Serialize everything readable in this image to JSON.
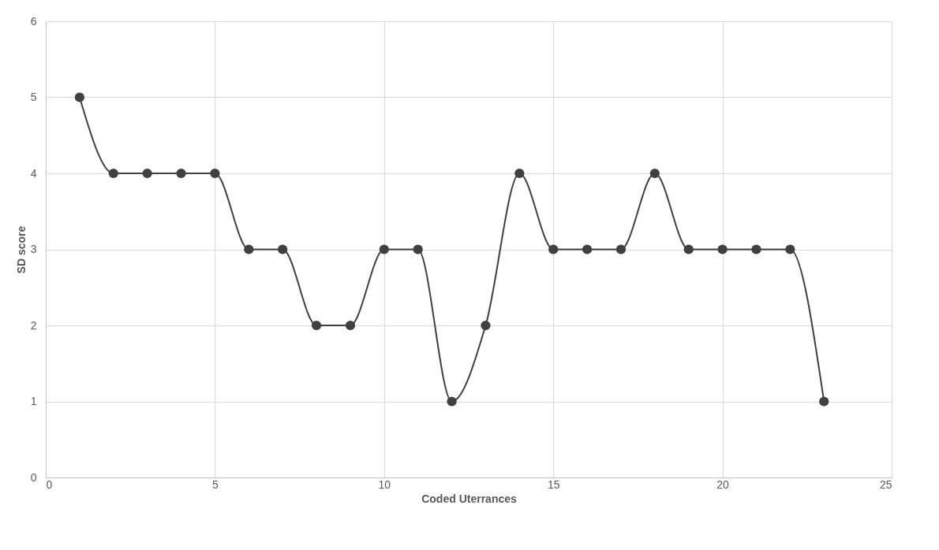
{
  "chart_data": {
    "type": "line",
    "xlabel": "Coded Uterrances",
    "ylabel": "SD score",
    "x": [
      1,
      2,
      3,
      4,
      5,
      6,
      7,
      8,
      9,
      10,
      11,
      12,
      13,
      14,
      15,
      16,
      17,
      18,
      19,
      20,
      21,
      22,
      23
    ],
    "series": [
      {
        "color": "#404040",
        "values": [
          5,
          4,
          4,
          4,
          4,
          3,
          3,
          2,
          2,
          3,
          3,
          1,
          2,
          4,
          3,
          3,
          3,
          4,
          3,
          3,
          3,
          3,
          1
        ]
      }
    ],
    "xlim": [
      0,
      25
    ],
    "xticks": [
      0,
      5,
      10,
      15,
      20,
      25
    ],
    "ylim": [
      0,
      6
    ],
    "yticks": [
      0,
      1,
      2,
      3,
      4,
      5,
      6
    ],
    "grid": true,
    "marker": "circle",
    "line_style": "solid"
  }
}
